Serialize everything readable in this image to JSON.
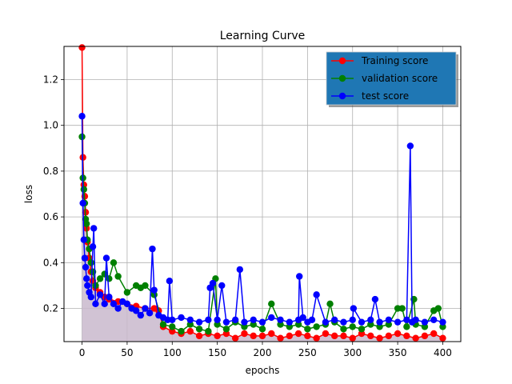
{
  "chart_data": {
    "type": "line",
    "title": "Learning Curve",
    "xlabel": "epochs",
    "ylabel": "loss",
    "xlim": [
      -20,
      420
    ],
    "ylim": [
      0.055,
      1.345
    ],
    "grid": true,
    "legend": "top-right",
    "x_ticks": [
      0,
      50,
      100,
      150,
      200,
      250,
      300,
      350,
      400
    ],
    "y_ticks": [
      0.2,
      0.4,
      0.6,
      0.8,
      1.0,
      1.2
    ],
    "x_tick_labels": [
      "0",
      "50",
      "100",
      "150",
      "200",
      "250",
      "300",
      "350",
      "400"
    ],
    "y_tick_labels": [
      "0.2",
      "0.4",
      "0.6",
      "0.8",
      "1.0",
      "1.2"
    ],
    "fill_between": {
      "series": "Training score",
      "color": "#c9b8cc"
    },
    "series": [
      {
        "name": "Training score",
        "color": "#ff0000",
        "x": [
          0,
          1,
          2,
          3,
          4,
          5,
          6,
          8,
          10,
          12,
          15,
          20,
          25,
          30,
          40,
          50,
          60,
          70,
          80,
          85,
          90,
          100,
          110,
          120,
          130,
          140,
          150,
          160,
          170,
          180,
          190,
          200,
          210,
          220,
          230,
          240,
          250,
          260,
          270,
          280,
          290,
          300,
          310,
          320,
          330,
          340,
          350,
          360,
          370,
          380,
          390,
          400
        ],
        "values": [
          1.34,
          0.86,
          0.74,
          0.69,
          0.62,
          0.55,
          0.49,
          0.42,
          0.36,
          0.32,
          0.29,
          0.27,
          0.25,
          0.24,
          0.23,
          0.22,
          0.21,
          0.2,
          0.2,
          0.19,
          0.12,
          0.1,
          0.09,
          0.1,
          0.08,
          0.09,
          0.08,
          0.09,
          0.07,
          0.09,
          0.08,
          0.08,
          0.09,
          0.07,
          0.08,
          0.09,
          0.08,
          0.07,
          0.09,
          0.08,
          0.08,
          0.07,
          0.09,
          0.08,
          0.07,
          0.08,
          0.09,
          0.08,
          0.07,
          0.08,
          0.09,
          0.07
        ]
      },
      {
        "name": "validation score",
        "color": "#008000",
        "x": [
          0,
          1,
          2,
          3,
          4,
          5,
          6,
          8,
          10,
          12,
          15,
          20,
          25,
          30,
          35,
          40,
          50,
          60,
          65,
          70,
          80,
          90,
          100,
          110,
          120,
          130,
          140,
          148,
          150,
          160,
          170,
          180,
          190,
          200,
          210,
          220,
          230,
          240,
          250,
          260,
          270,
          275,
          280,
          290,
          300,
          310,
          320,
          330,
          340,
          350,
          355,
          360,
          368,
          370,
          380,
          390,
          395,
          400
        ],
        "values": [
          0.95,
          0.77,
          0.72,
          0.66,
          0.59,
          0.57,
          0.5,
          0.46,
          0.4,
          0.36,
          0.3,
          0.33,
          0.35,
          0.33,
          0.4,
          0.34,
          0.27,
          0.3,
          0.29,
          0.3,
          0.26,
          0.13,
          0.12,
          0.1,
          0.13,
          0.11,
          0.1,
          0.33,
          0.13,
          0.11,
          0.14,
          0.12,
          0.13,
          0.11,
          0.22,
          0.13,
          0.12,
          0.13,
          0.11,
          0.12,
          0.13,
          0.22,
          0.14,
          0.11,
          0.12,
          0.11,
          0.13,
          0.12,
          0.13,
          0.2,
          0.2,
          0.12,
          0.24,
          0.13,
          0.12,
          0.19,
          0.2,
          0.12
        ]
      },
      {
        "name": "test score",
        "color": "#0000ff",
        "x": [
          0,
          1,
          2,
          3,
          4,
          5,
          6,
          8,
          10,
          12,
          13,
          15,
          20,
          25,
          27,
          30,
          35,
          40,
          45,
          50,
          55,
          60,
          65,
          70,
          75,
          78,
          80,
          85,
          90,
          95,
          97,
          100,
          110,
          120,
          130,
          140,
          142,
          145,
          150,
          155,
          160,
          170,
          175,
          180,
          190,
          200,
          210,
          220,
          230,
          240,
          241,
          245,
          250,
          255,
          260,
          270,
          280,
          290,
          300,
          301,
          310,
          320,
          325,
          330,
          340,
          350,
          360,
          364,
          366,
          370,
          380,
          390,
          400
        ],
        "values": [
          1.04,
          0.66,
          0.5,
          0.42,
          0.38,
          0.33,
          0.3,
          0.27,
          0.25,
          0.47,
          0.55,
          0.22,
          0.26,
          0.22,
          0.42,
          0.25,
          0.22,
          0.2,
          0.23,
          0.22,
          0.2,
          0.19,
          0.17,
          0.2,
          0.18,
          0.46,
          0.28,
          0.17,
          0.16,
          0.15,
          0.32,
          0.15,
          0.16,
          0.15,
          0.14,
          0.15,
          0.29,
          0.31,
          0.15,
          0.3,
          0.14,
          0.15,
          0.37,
          0.14,
          0.15,
          0.14,
          0.16,
          0.15,
          0.14,
          0.15,
          0.34,
          0.16,
          0.14,
          0.15,
          0.26,
          0.14,
          0.15,
          0.14,
          0.15,
          0.2,
          0.14,
          0.15,
          0.24,
          0.14,
          0.15,
          0.14,
          0.15,
          0.91,
          0.14,
          0.15,
          0.14,
          0.15,
          0.14
        ]
      }
    ]
  }
}
